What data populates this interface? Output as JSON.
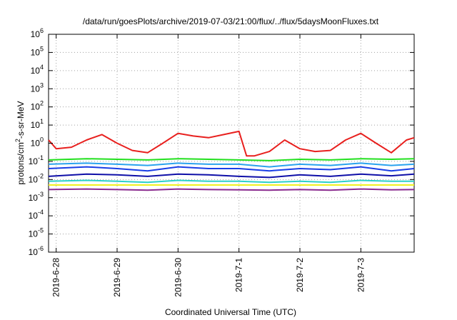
{
  "chart_data": {
    "type": "line",
    "title": "/data/run/goesPlots/archive/2019-07-03/21:00/flux/../flux/5daysMoonFluxes.txt",
    "xlabel": "Coordinated Universal Time (UTC)",
    "ylabel": {
      "base": "protons/cm",
      "sup": "2",
      "rest": "-s-sr-MeV"
    },
    "y_scale": "log",
    "ylim": [
      1e-06,
      1000000.0
    ],
    "y_ticks": [
      {
        "base": "10",
        "exp": "6",
        "value": 1000000.0
      },
      {
        "base": "10",
        "exp": "5",
        "value": 100000.0
      },
      {
        "base": "10",
        "exp": "4",
        "value": 10000.0
      },
      {
        "base": "10",
        "exp": "3",
        "value": 1000.0
      },
      {
        "base": "10",
        "exp": "2",
        "value": 100.0
      },
      {
        "base": "10",
        "exp": "1",
        "value": 10.0
      },
      {
        "base": "10",
        "exp": "0",
        "value": 1.0
      },
      {
        "base": "10",
        "exp": "-1",
        "value": 0.1
      },
      {
        "base": "10",
        "exp": "-2",
        "value": 0.01
      },
      {
        "base": "10",
        "exp": "-3",
        "value": 0.001
      },
      {
        "base": "10",
        "exp": "-4",
        "value": 0.0001
      },
      {
        "base": "10",
        "exp": "-5",
        "value": 1e-05
      },
      {
        "base": "10",
        "exp": "-6",
        "value": 1e-06
      }
    ],
    "xlim": [
      "2019-06-27T21:00",
      "2019-07-03T21:00"
    ],
    "x_ticks": [
      "2019-6-28",
      "2019-6-29",
      "2019-6-30",
      "2019-7-1",
      "2019-7-2",
      "2019-7-3"
    ],
    "grid": true,
    "legend": "none",
    "series": [
      {
        "color": "#e8201e",
        "x": [
          "2019-06-27T21:00",
          "2019-06-28T00:00",
          "2019-06-28T06:00",
          "2019-06-28T12:00",
          "2019-06-28T18:00",
          "2019-06-29T00:00",
          "2019-06-29T06:00",
          "2019-06-29T12:00",
          "2019-06-29T18:00",
          "2019-06-30T00:00",
          "2019-06-30T06:00",
          "2019-06-30T12:00",
          "2019-06-30T18:00",
          "2019-07-01T00:00",
          "2019-07-01T03:00",
          "2019-07-01T06:00",
          "2019-07-01T12:00",
          "2019-07-01T18:00",
          "2019-07-02T00:00",
          "2019-07-02T06:00",
          "2019-07-02T12:00",
          "2019-07-02T18:00",
          "2019-07-03T00:00",
          "2019-07-03T06:00",
          "2019-07-03T12:00",
          "2019-07-03T18:00",
          "2019-07-03T21:00"
        ],
        "values": [
          1.5,
          0.5,
          0.6,
          1.5,
          3,
          1.0,
          0.4,
          0.3,
          1.0,
          3.5,
          2.5,
          2.0,
          3.0,
          4.5,
          0.2,
          0.2,
          0.35,
          1.5,
          0.5,
          0.35,
          0.4,
          1.5,
          3.5,
          1.0,
          0.3,
          1.5,
          2.0
        ]
      },
      {
        "color": "#22e01e",
        "x": [
          "2019-06-27T21:00",
          "2019-06-28T12:00",
          "2019-06-29T00:00",
          "2019-06-29T12:00",
          "2019-06-30T00:00",
          "2019-06-30T12:00",
          "2019-07-01T00:00",
          "2019-07-01T12:00",
          "2019-07-02T00:00",
          "2019-07-02T12:00",
          "2019-07-03T00:00",
          "2019-07-03T12:00",
          "2019-07-03T21:00"
        ],
        "values": [
          0.12,
          0.14,
          0.13,
          0.12,
          0.14,
          0.13,
          0.12,
          0.11,
          0.13,
          0.12,
          0.14,
          0.13,
          0.14
        ]
      },
      {
        "color": "#2aa3ee",
        "x": [
          "2019-06-27T21:00",
          "2019-06-28T12:00",
          "2019-06-29T00:00",
          "2019-06-29T12:00",
          "2019-06-30T00:00",
          "2019-06-30T12:00",
          "2019-07-01T00:00",
          "2019-07-01T12:00",
          "2019-07-02T00:00",
          "2019-07-02T12:00",
          "2019-07-03T00:00",
          "2019-07-03T12:00",
          "2019-07-03T21:00"
        ],
        "values": [
          0.07,
          0.08,
          0.07,
          0.06,
          0.08,
          0.07,
          0.07,
          0.05,
          0.07,
          0.06,
          0.08,
          0.06,
          0.07
        ]
      },
      {
        "color": "#1a3ee6",
        "x": [
          "2019-06-27T21:00",
          "2019-06-28T12:00",
          "2019-06-29T00:00",
          "2019-06-29T12:00",
          "2019-06-30T00:00",
          "2019-06-30T12:00",
          "2019-07-01T00:00",
          "2019-07-01T12:00",
          "2019-07-02T00:00",
          "2019-07-02T12:00",
          "2019-07-03T00:00",
          "2019-07-03T12:00",
          "2019-07-03T21:00"
        ],
        "values": [
          0.04,
          0.05,
          0.04,
          0.03,
          0.05,
          0.04,
          0.04,
          0.03,
          0.04,
          0.035,
          0.05,
          0.03,
          0.04
        ]
      },
      {
        "color": "#0f0fa8",
        "x": [
          "2019-06-27T21:00",
          "2019-06-28T12:00",
          "2019-06-29T00:00",
          "2019-06-29T12:00",
          "2019-06-30T00:00",
          "2019-06-30T12:00",
          "2019-07-01T00:00",
          "2019-07-01T12:00",
          "2019-07-02T00:00",
          "2019-07-02T12:00",
          "2019-07-03T00:00",
          "2019-07-03T12:00",
          "2019-07-03T21:00"
        ],
        "values": [
          0.015,
          0.02,
          0.018,
          0.015,
          0.02,
          0.018,
          0.015,
          0.013,
          0.018,
          0.015,
          0.02,
          0.016,
          0.02
        ]
      },
      {
        "color": "#2bd0c8",
        "x": [
          "2019-06-27T21:00",
          "2019-06-28T12:00",
          "2019-06-29T00:00",
          "2019-06-29T12:00",
          "2019-06-30T00:00",
          "2019-06-30T12:00",
          "2019-07-01T00:00",
          "2019-07-01T12:00",
          "2019-07-02T00:00",
          "2019-07-02T12:00",
          "2019-07-03T00:00",
          "2019-07-03T12:00",
          "2019-07-03T21:00"
        ],
        "values": [
          0.008,
          0.009,
          0.008,
          0.007,
          0.009,
          0.008,
          0.008,
          0.007,
          0.008,
          0.007,
          0.009,
          0.008,
          0.008
        ]
      },
      {
        "color": "#f0f020",
        "x": [
          "2019-06-27T21:00",
          "2019-06-28T12:00",
          "2019-06-29T00:00",
          "2019-06-29T12:00",
          "2019-06-30T00:00",
          "2019-06-30T12:00",
          "2019-07-01T00:00",
          "2019-07-01T12:00",
          "2019-07-02T00:00",
          "2019-07-02T12:00",
          "2019-07-03T00:00",
          "2019-07-03T12:00",
          "2019-07-03T21:00"
        ],
        "values": [
          0.005,
          0.005,
          0.005,
          0.005,
          0.005,
          0.005,
          0.005,
          0.005,
          0.005,
          0.005,
          0.005,
          0.005,
          0.005
        ]
      },
      {
        "color": "#8a2a8e",
        "x": [
          "2019-06-27T21:00",
          "2019-06-28T12:00",
          "2019-06-29T00:00",
          "2019-06-29T12:00",
          "2019-06-30T00:00",
          "2019-06-30T12:00",
          "2019-07-01T00:00",
          "2019-07-01T12:00",
          "2019-07-02T00:00",
          "2019-07-02T12:00",
          "2019-07-03T00:00",
          "2019-07-03T12:00",
          "2019-07-03T21:00"
        ],
        "values": [
          0.0028,
          0.003,
          0.0028,
          0.0026,
          0.003,
          0.0028,
          0.0027,
          0.0026,
          0.0028,
          0.0026,
          0.003,
          0.0027,
          0.0028
        ]
      }
    ]
  }
}
